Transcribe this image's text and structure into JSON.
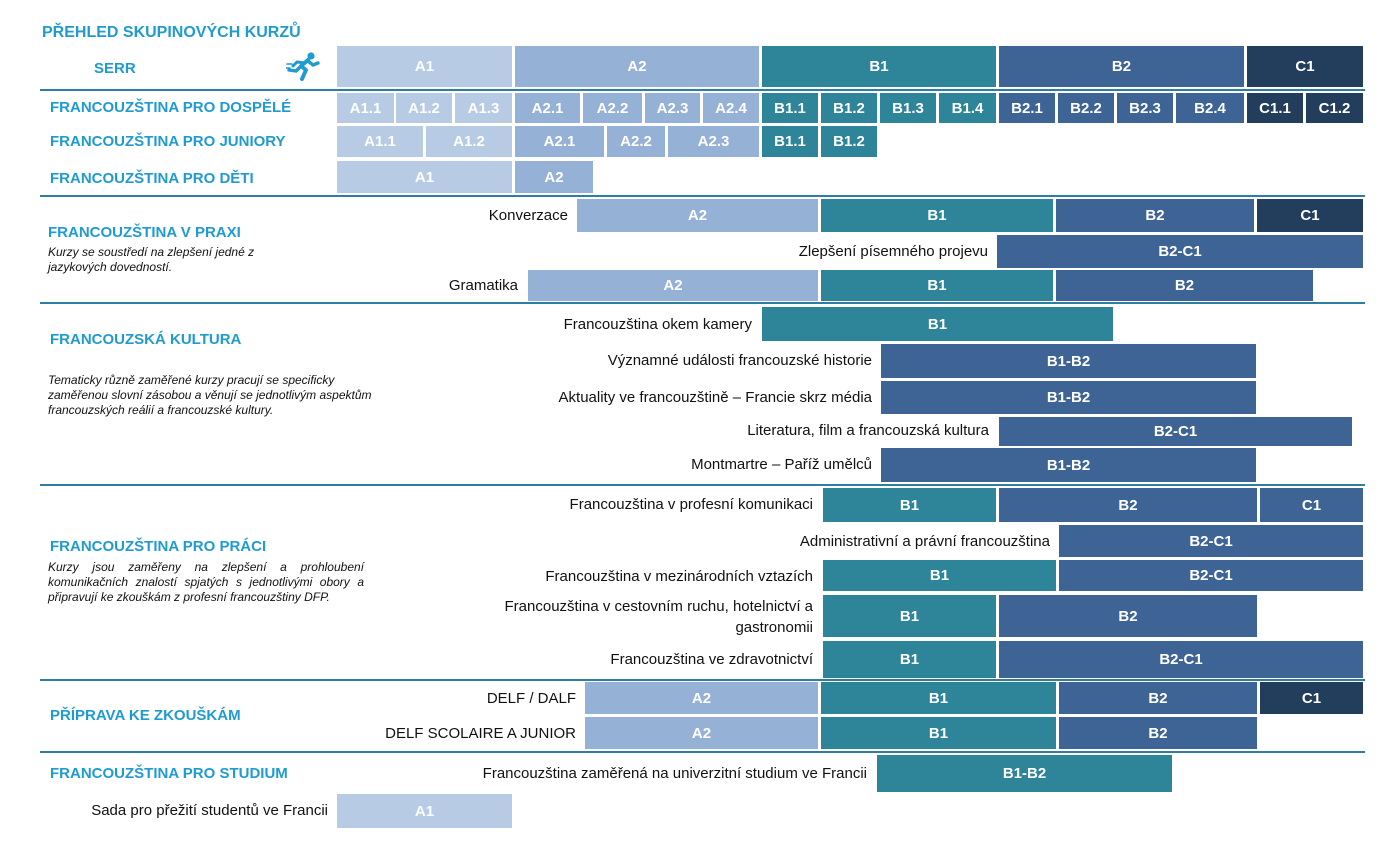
{
  "header": {
    "title": "PŘEHLED SKUPINOVÝCH KURZŮ",
    "serr_label": "SERR",
    "runner_icon": "runner-icon",
    "levels": [
      "A1",
      "A2",
      "B1",
      "B2",
      "C1"
    ]
  },
  "adults": {
    "title": "FRANCOUZŠTINA PRO DOSPĚLÉ",
    "levels": [
      "A1.1",
      "A1.2",
      "A1.3",
      "A2.1",
      "A2.2",
      "A2.3",
      "A2.4",
      "B1.1",
      "B1.2",
      "B1.3",
      "B1.4",
      "B2.1",
      "B2.2",
      "B2.3",
      "B2.4",
      "C1.1",
      "C1.2"
    ]
  },
  "juniors": {
    "title": "FRANCOUZŠTINA PRO JUNIORY",
    "levels": [
      "A1.1",
      "A1.2",
      "A2.1",
      "A2.2",
      "A2.3",
      "B1.1",
      "B1.2"
    ]
  },
  "kids": {
    "title": "FRANCOUZŠTINA PRO DĚTI",
    "levels": [
      "A1",
      "A2"
    ]
  },
  "practice": {
    "title": "FRANCOUZŠTINA V PRAXI",
    "description": "Kurzy se soustředí na zlepšení jedné z jazykových dovedností.",
    "courses": [
      {
        "name": "Konverzace",
        "levels": [
          "A2",
          "B1",
          "B2",
          "C1"
        ]
      },
      {
        "name": "Zlepšení písemného projevu",
        "levels": [
          "B2-C1"
        ]
      },
      {
        "name": "Gramatika",
        "levels": [
          "A2",
          "B1",
          "B2"
        ]
      }
    ]
  },
  "culture": {
    "title": "FRANCOUZSKÁ KULTURA",
    "description": "Tematicky různě zaměřené kurzy pracují se specificky zaměřenou slovní zásobou a věnují se jednotlivým aspektům francouzských reálií a francouzské kultury.",
    "courses": [
      {
        "name": "Francouzština okem kamery",
        "levels": [
          "B1"
        ]
      },
      {
        "name": "Významné události francouzské historie",
        "levels": [
          "B1-B2"
        ]
      },
      {
        "name": "Aktuality ve francouzštině – Francie skrz média",
        "levels": [
          "B1-B2"
        ]
      },
      {
        "name": "Literatura, film a francouzská kultura",
        "levels": [
          "B2-C1"
        ]
      },
      {
        "name": "Montmartre – Paříž umělců",
        "levels": [
          "B1-B2"
        ]
      }
    ]
  },
  "work": {
    "title": "FRANCOUZŠTINA PRO PRÁCI",
    "description": "Kurzy jsou zaměřeny na zlepšení a prohloubení komunikačních znalostí spjatých s jednotlivými obory a připravují ke zkouškám z profesní francouzštiny DFP.",
    "courses": [
      {
        "name": "Francouzština v profesní komunikaci",
        "levels": [
          "B1",
          "B2",
          "C1"
        ]
      },
      {
        "name": "Administrativní a právní francouzština",
        "levels": [
          "B2-C1"
        ]
      },
      {
        "name": "Francouzština v mezinárodních vztazích",
        "levels": [
          "B1",
          "B2-C1"
        ]
      },
      {
        "name": "Francouzština v cestovním ruchu, hotelnictví a gastronomii",
        "levels": [
          "B1",
          "B2"
        ]
      },
      {
        "name": "Francouzština ve zdravotnictví",
        "levels": [
          "B1",
          "B2-C1"
        ]
      }
    ]
  },
  "exams": {
    "title": "PŘÍPRAVA KE ZKOUŠKÁM",
    "courses": [
      {
        "name": "DELF / DALF",
        "levels": [
          "A2",
          "B1",
          "B2",
          "C1"
        ]
      },
      {
        "name": "DELF SCOLAIRE A JUNIOR",
        "levels": [
          "A2",
          "B1",
          "B2"
        ]
      }
    ]
  },
  "study": {
    "title": "FRANCOUZŠTINA PRO STUDIUM",
    "courses": [
      {
        "name": "Francouzština zaměřená na univerzitní studium ve Francii",
        "levels": [
          "B1-B2"
        ]
      },
      {
        "name": "Sada pro přežití studentů ve Francii",
        "levels": [
          "A1"
        ]
      }
    ]
  },
  "colors": {
    "title": "#1f9bd1",
    "separator": "#2d7ea0",
    "a1": "#b7cbe4",
    "a2": "#95b1d6",
    "b1": "#2e8499",
    "b2": "#3d6495",
    "c1": "#233d5c"
  }
}
